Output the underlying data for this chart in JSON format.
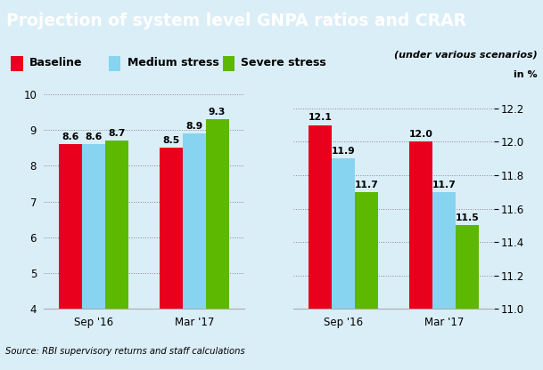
{
  "title": "Projection of system level GNPA ratios and CRAR",
  "title_bg_color": "#1a9cdb",
  "chart_bg_color": "#daeef8",
  "legend_items": [
    "Baseline",
    "Medium stress",
    "Severe stress"
  ],
  "legend_colors": [
    "#e8001c",
    "#87d4f0",
    "#5cb800"
  ],
  "subtitle_right": "(under various scenarios)",
  "unit_label": "in %",
  "source": "Source: RBI supervisory returns and staff calculations",
  "left_chart": {
    "groups": [
      "Sep '16",
      "Mar '17"
    ],
    "values": [
      [
        8.6,
        8.6,
        8.7
      ],
      [
        8.5,
        8.9,
        9.3
      ]
    ],
    "ylim": [
      4,
      10.3
    ],
    "yticks": [
      4,
      5,
      6,
      7,
      8,
      9,
      10
    ]
  },
  "right_chart": {
    "groups": [
      "Sep '16",
      "Mar '17"
    ],
    "values": [
      [
        12.1,
        11.9,
        11.7
      ],
      [
        12.0,
        11.7,
        11.5
      ]
    ],
    "ylim": [
      11.0,
      12.35
    ],
    "yticks": [
      11.0,
      11.2,
      11.4,
      11.6,
      11.8,
      12.0,
      12.2
    ]
  },
  "bar_colors": [
    "#e8001c",
    "#87d4f0",
    "#5cb800"
  ],
  "bar_width": 0.23,
  "label_fontsize": 7.8,
  "tick_fontsize": 8.5,
  "title_fontsize": 13.5
}
